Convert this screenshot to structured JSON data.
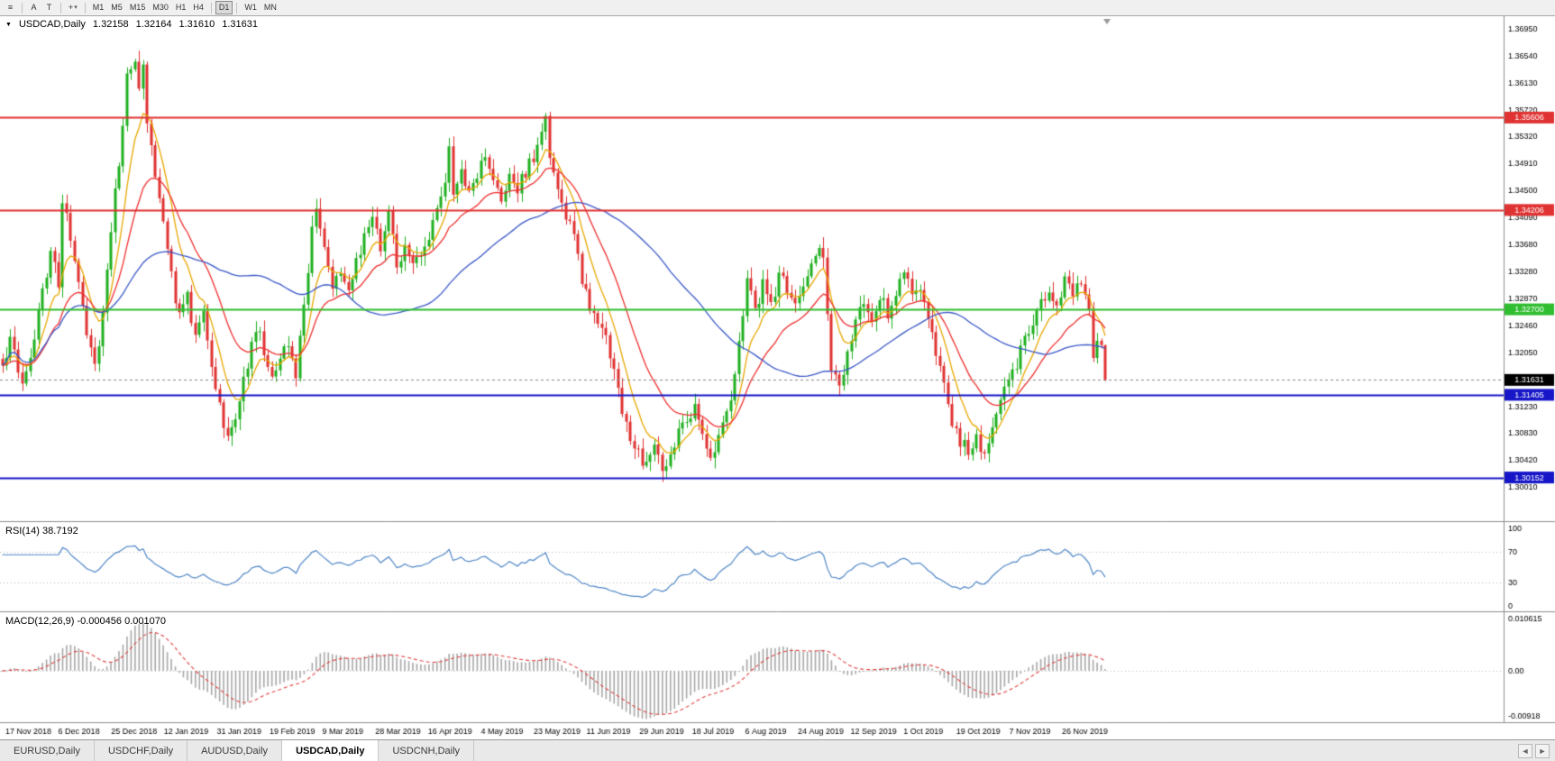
{
  "toolbar": {
    "tools": [
      {
        "name": "bars-menu-icon",
        "glyph": "≡"
      },
      {
        "sep": true
      },
      {
        "name": "cursor-tool-button",
        "glyph": "A"
      },
      {
        "name": "text-tool-button",
        "glyph": "T"
      },
      {
        "sep": true
      },
      {
        "name": "crosshair-tool-button",
        "glyph": "+",
        "caret": "▾"
      },
      {
        "sep": true
      }
    ],
    "timeframes": [
      "M1",
      "M5",
      "M15",
      "M30",
      "H1",
      "H4",
      "D1",
      "W1",
      "MN"
    ],
    "active_timeframe": "D1"
  },
  "chart": {
    "collapse_glyph": "▼",
    "title": "USDCAD,Daily",
    "ohlc": {
      "open": "1.32158",
      "high": "1.32164",
      "low": "1.31610",
      "close": "1.31631"
    }
  },
  "labels": {
    "rsi": "RSI(14) 38.7192",
    "macd": "MACD(12,26,9) -0.000456 0.001070"
  },
  "chart_data": {
    "type": "candlestick",
    "symbol": "USDCAD",
    "timeframe": "Daily",
    "bars": 275,
    "up_color": "#1FAF1F",
    "down_color": "#E03232",
    "anchors": [
      [
        0,
        1.3185
      ],
      [
        2,
        1.323
      ],
      [
        5,
        1.316
      ],
      [
        7,
        1.32
      ],
      [
        10,
        1.33
      ],
      [
        12,
        1.3355
      ],
      [
        14,
        1.331
      ],
      [
        15,
        1.3435
      ],
      [
        17,
        1.338
      ],
      [
        19,
        1.332
      ],
      [
        21,
        1.324
      ],
      [
        23,
        1.3185
      ],
      [
        25,
        1.3265
      ],
      [
        27,
        1.3395
      ],
      [
        29,
        1.349
      ],
      [
        31,
        1.362
      ],
      [
        33,
        1.3655
      ],
      [
        34,
        1.36
      ],
      [
        35,
        1.365
      ],
      [
        36,
        1.356
      ],
      [
        38,
        1.348
      ],
      [
        40,
        1.3395
      ],
      [
        42,
        1.332
      ],
      [
        44,
        1.3255
      ],
      [
        46,
        1.329
      ],
      [
        48,
        1.323
      ],
      [
        50,
        1.327
      ],
      [
        52,
        1.3175
      ],
      [
        54,
        1.312
      ],
      [
        56,
        1.3078
      ],
      [
        58,
        1.3105
      ],
      [
        60,
        1.316
      ],
      [
        62,
        1.322
      ],
      [
        63,
        1.3245
      ],
      [
        65,
        1.321
      ],
      [
        67,
        1.316
      ],
      [
        69,
        1.3195
      ],
      [
        71,
        1.3215
      ],
      [
        73,
        1.3165
      ],
      [
        75,
        1.328
      ],
      [
        77,
        1.339
      ],
      [
        78,
        1.343
      ],
      [
        80,
        1.336
      ],
      [
        82,
        1.331
      ],
      [
        84,
        1.333
      ],
      [
        86,
        1.33
      ],
      [
        88,
        1.3345
      ],
      [
        90,
        1.338
      ],
      [
        92,
        1.3405
      ],
      [
        94,
        1.336
      ],
      [
        96,
        1.341
      ],
      [
        98,
        1.334
      ],
      [
        100,
        1.336
      ],
      [
        102,
        1.333
      ],
      [
        104,
        1.336
      ],
      [
        106,
        1.3385
      ],
      [
        108,
        1.342
      ],
      [
        110,
        1.347
      ],
      [
        111,
        1.351
      ],
      [
        112,
        1.345
      ],
      [
        114,
        1.348
      ],
      [
        116,
        1.345
      ],
      [
        118,
        1.3475
      ],
      [
        120,
        1.35
      ],
      [
        122,
        1.347
      ],
      [
        124,
        1.344
      ],
      [
        126,
        1.3475
      ],
      [
        128,
        1.345
      ],
      [
        130,
        1.348
      ],
      [
        132,
        1.35
      ],
      [
        134,
        1.3545
      ],
      [
        135,
        1.356
      ],
      [
        136,
        1.35
      ],
      [
        138,
        1.3455
      ],
      [
        140,
        1.341
      ],
      [
        142,
        1.338
      ],
      [
        144,
        1.331
      ],
      [
        146,
        1.3275
      ],
      [
        148,
        1.325
      ],
      [
        150,
        1.323
      ],
      [
        152,
        1.318
      ],
      [
        154,
        1.312
      ],
      [
        156,
        1.308
      ],
      [
        158,
        1.305
      ],
      [
        160,
        1.3035
      ],
      [
        162,
        1.306
      ],
      [
        164,
        1.3025
      ],
      [
        166,
        1.305
      ],
      [
        168,
        1.308
      ],
      [
        170,
        1.31
      ],
      [
        172,
        1.313
      ],
      [
        174,
        1.309
      ],
      [
        176,
        1.304
      ],
      [
        178,
        1.307
      ],
      [
        180,
        1.311
      ],
      [
        182,
        1.317
      ],
      [
        184,
        1.326
      ],
      [
        185,
        1.331
      ],
      [
        187,
        1.327
      ],
      [
        189,
        1.3305
      ],
      [
        191,
        1.328
      ],
      [
        193,
        1.332
      ],
      [
        195,
        1.33
      ],
      [
        197,
        1.327
      ],
      [
        199,
        1.33
      ],
      [
        201,
        1.334
      ],
      [
        203,
        1.337
      ],
      [
        204,
        1.3345
      ],
      [
        206,
        1.318
      ],
      [
        208,
        1.316
      ],
      [
        210,
        1.32
      ],
      [
        212,
        1.325
      ],
      [
        214,
        1.328
      ],
      [
        216,
        1.325
      ],
      [
        218,
        1.329
      ],
      [
        220,
        1.3265
      ],
      [
        222,
        1.33
      ],
      [
        224,
        1.333
      ],
      [
        226,
        1.329
      ],
      [
        228,
        1.331
      ],
      [
        230,
        1.325
      ],
      [
        232,
        1.32
      ],
      [
        234,
        1.315
      ],
      [
        236,
        1.31
      ],
      [
        238,
        1.307
      ],
      [
        240,
        1.3055
      ],
      [
        242,
        1.3075
      ],
      [
        244,
        1.3045
      ],
      [
        246,
        1.309
      ],
      [
        248,
        1.313
      ],
      [
        250,
        1.316
      ],
      [
        252,
        1.319
      ],
      [
        254,
        1.322
      ],
      [
        256,
        1.325
      ],
      [
        258,
        1.328
      ],
      [
        260,
        1.33
      ],
      [
        262,
        1.328
      ],
      [
        264,
        1.331
      ],
      [
        266,
        1.329
      ],
      [
        268,
        1.331
      ],
      [
        270,
        1.326
      ],
      [
        271,
        1.32
      ],
      [
        272,
        1.3215
      ],
      [
        273,
        1.3216
      ],
      [
        274,
        1.31631
      ]
    ],
    "last_bar": {
      "open": 1.32158,
      "high": 1.32164,
      "low": 1.3161,
      "close": 1.31631
    },
    "y_ticks": [
      "1.36950",
      "1.36540",
      "1.36130",
      "1.35720",
      "1.35320",
      "1.34910",
      "1.34500",
      "1.34090",
      "1.33680",
      "1.33280",
      "1.32870",
      "1.32460",
      "1.32050",
      "1.31640",
      "1.31230",
      "1.30830",
      "1.30420",
      "1.30010"
    ],
    "h_lines": [
      {
        "price": 1.35606,
        "label": "1.35606",
        "color": "#E03232"
      },
      {
        "price": 1.34206,
        "label": "1.34206",
        "color": "#E03232"
      },
      {
        "price": 1.327,
        "label": "1.32700",
        "color": "#2FBE2F"
      },
      {
        "price": 1.31405,
        "label": "1.31405",
        "color": "#1616C8"
      },
      {
        "price": 1.30152,
        "label": "1.30152",
        "color": "#1616C8"
      }
    ],
    "current_price": {
      "price": 1.31631,
      "label": "1.31631",
      "badge_color": "#000000",
      "line_color": "#888888"
    },
    "moving_averages": [
      {
        "type": "ema",
        "period": 8,
        "color": "#E8A800"
      },
      {
        "type": "ema",
        "period": 20,
        "color": "#F03030"
      },
      {
        "type": "sma",
        "period": 55,
        "color": "#3A57C8"
      }
    ],
    "date_labels": [
      "17 Nov 2018",
      "6 Dec 2018",
      "25 Dec 2018",
      "12 Jan 2019",
      "31 Jan 2019",
      "19 Feb 2019",
      "9 Mar 2019",
      "28 Mar 2019",
      "16 Apr 2019",
      "4 May 2019",
      "23 May 2019",
      "11 Jun 2019",
      "29 Jun 2019",
      "18 Jul 2019",
      "6 Aug 2019",
      "24 Aug 2019",
      "12 Sep 2019",
      "1 Oct 2019",
      "19 Oct 2019",
      "7 Nov 2019",
      "26 Nov 2019"
    ],
    "rsi": {
      "period": 14,
      "value": "38.7192",
      "levels": [
        70,
        30
      ],
      "scale_labels": [
        "100",
        "70",
        "30",
        "0"
      ],
      "color": "#4F86C6"
    },
    "macd": {
      "fast": 12,
      "slow": 26,
      "signal": 9,
      "main_value": "-0.000456",
      "signal_value": "0.001070",
      "scale_top": "0.010615",
      "scale_zero": "0.00",
      "scale_bottom": "-0.00918",
      "hist_color": "#A8A8A8",
      "signal_color": "#E04040"
    }
  },
  "tabs": {
    "items": [
      {
        "label": "EURUSD,Daily",
        "active": false
      },
      {
        "label": "USDCHF,Daily",
        "active": false
      },
      {
        "label": "AUDUSD,Daily",
        "active": false
      },
      {
        "label": "USDCAD,Daily",
        "active": true
      },
      {
        "label": "USDCNH,Daily",
        "active": false
      }
    ],
    "scroll_left": "◄",
    "scroll_right": "►"
  }
}
